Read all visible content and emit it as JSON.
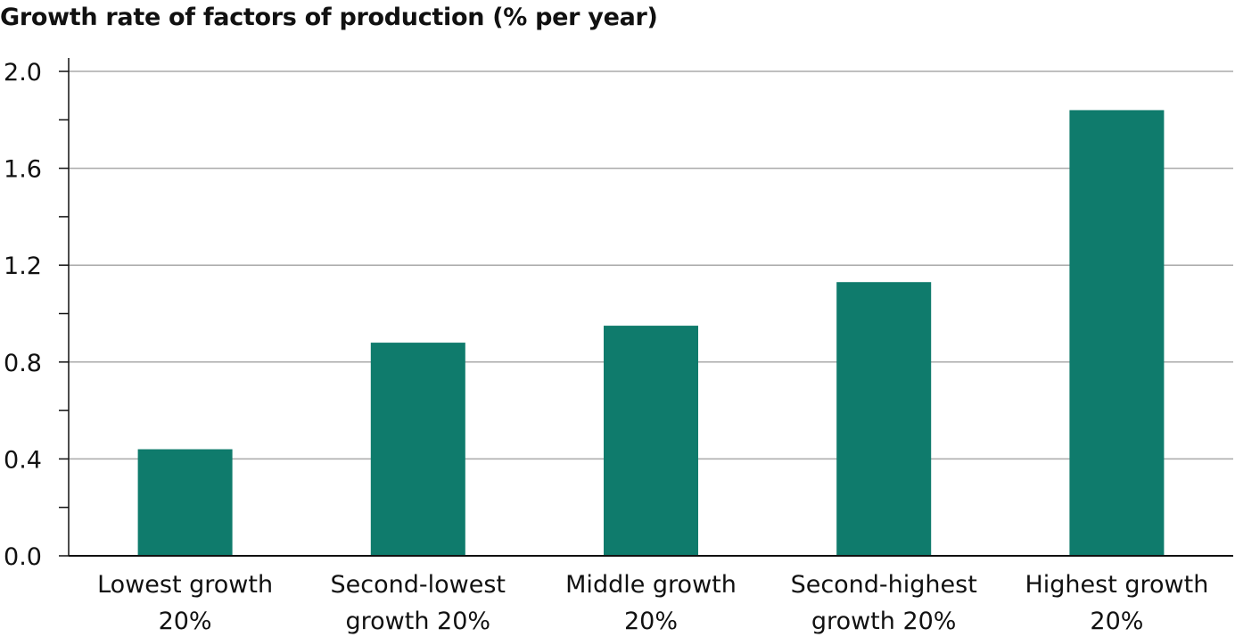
{
  "chart_data": {
    "type": "bar",
    "title": "Growth rate of factors of production (% per year)",
    "xlabel": "",
    "ylabel": "",
    "categories": [
      [
        "Lowest growth",
        "20%"
      ],
      [
        "Second-lowest",
        "growth 20%"
      ],
      [
        "Middle growth",
        "20%"
      ],
      [
        "Second-highest",
        "growth 20%"
      ],
      [
        "Highest growth",
        "20%"
      ]
    ],
    "values": [
      0.44,
      0.88,
      0.95,
      1.13,
      1.84
    ],
    "ylim": [
      0,
      2.0
    ],
    "yticks": [
      "0.0",
      "0.4",
      "0.8",
      "1.2",
      "1.6",
      "2.0"
    ],
    "minor_ticks": true,
    "grid": true,
    "legend": "none",
    "bar_color": "#0f7b6c",
    "grid_color": "#aaaaaa",
    "axis_color": "#111111"
  }
}
